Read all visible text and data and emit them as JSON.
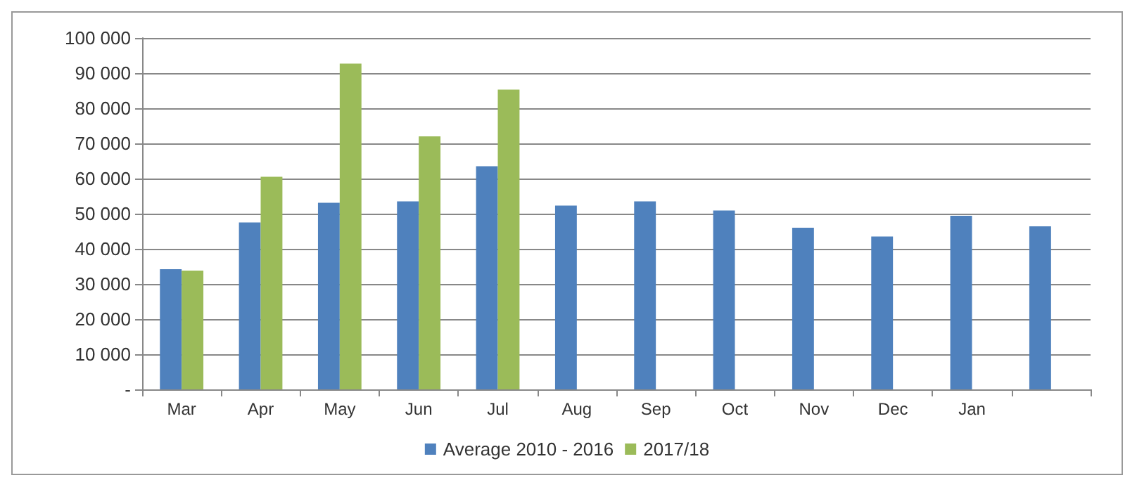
{
  "chart_data": {
    "type": "bar",
    "categories": [
      "Mar",
      "Apr",
      "May",
      "Jun",
      "Jul",
      "Aug",
      "Sep",
      "Oct",
      "Nov",
      "Dec",
      "Jan",
      null
    ],
    "series": [
      {
        "name": "Average 2010 - 2016",
        "color": "#4f81bd",
        "values": [
          34200,
          47500,
          53100,
          53500,
          63500,
          52300,
          53500,
          50900,
          46000,
          43500,
          49400,
          46400
        ]
      },
      {
        "name": "2017/18",
        "color": "#9bbb59",
        "values": [
          33800,
          60500,
          92700,
          72000,
          85300,
          null,
          null,
          null,
          null,
          null,
          null,
          null
        ]
      }
    ],
    "ylim": [
      0,
      100000
    ],
    "yticks": [
      {
        "value": 0,
        "label": "-"
      },
      {
        "value": 10000,
        "label": "10 000"
      },
      {
        "value": 20000,
        "label": "20 000"
      },
      {
        "value": 30000,
        "label": "30 000"
      },
      {
        "value": 40000,
        "label": "40 000"
      },
      {
        "value": 50000,
        "label": "50 000"
      },
      {
        "value": 60000,
        "label": "60 000"
      },
      {
        "value": 70000,
        "label": "70 000"
      },
      {
        "value": 80000,
        "label": "80 000"
      },
      {
        "value": 90000,
        "label": "90 000"
      },
      {
        "value": 100000,
        "label": "100 000"
      }
    ],
    "grid": "y",
    "legend": "bottom"
  }
}
